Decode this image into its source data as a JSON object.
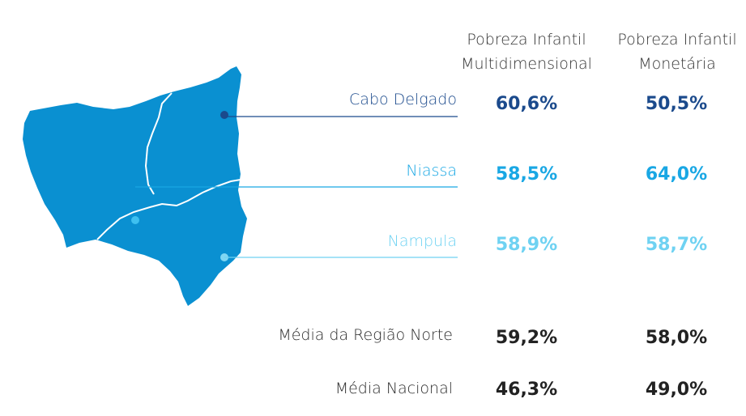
{
  "headers": {
    "multidimensional": [
      "Pobreza Infantil",
      "Multidimensional"
    ],
    "monetary": [
      "Pobreza Infantil",
      "Monetária"
    ]
  },
  "provinces": [
    {
      "name": "Cabo Delgado",
      "multidimensional": "60,6%",
      "monetary": "50,5%",
      "color": "#1b4a8c"
    },
    {
      "name": "Niassa",
      "multidimensional": "58,5%",
      "monetary": "64,0%",
      "color": "#19a7e4"
    },
    {
      "name": "Nampula",
      "multidimensional": "58,9%",
      "monetary": "58,7%",
      "color": "#6fd2f2"
    }
  ],
  "averages": [
    {
      "name": "Média da Região Norte",
      "multidimensional": "59,2%",
      "monetary": "58,0%"
    },
    {
      "name": "Média Nacional",
      "multidimensional": "46,3%",
      "monetary": "49,0%"
    }
  ],
  "colors": {
    "map_fill": "#0a90d1",
    "border": "#ffffff",
    "text": "#333333"
  }
}
